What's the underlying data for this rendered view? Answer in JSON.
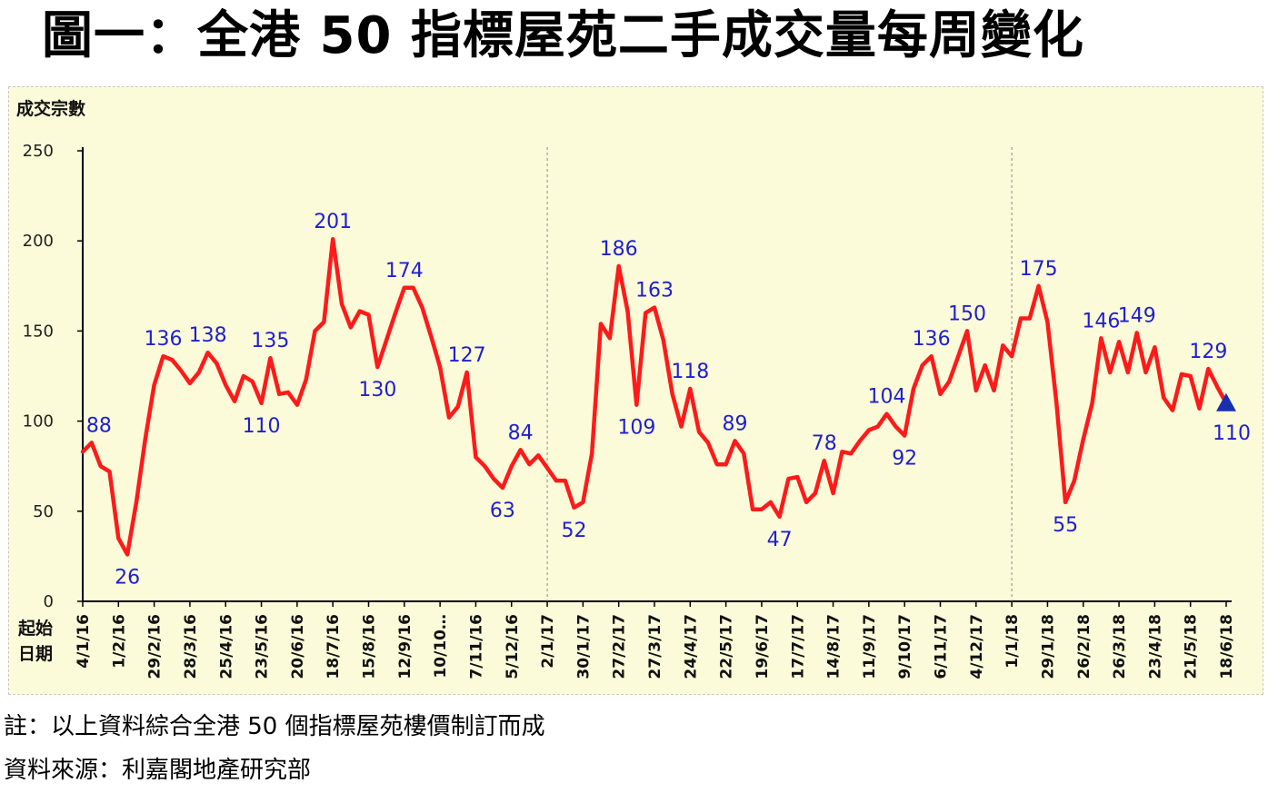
{
  "title": "圖一：全港 50 指標屋苑二手成交量每周變化",
  "note": "註：以上資料綜合全港 50 個指標屋苑樓價制訂而成",
  "source": "資料來源：利嘉閣地產研究部",
  "colors": {
    "line": "#ff1a1a",
    "label": "#1f1fd0",
    "marker": "#1a2fb0",
    "background": "#fbfbd9"
  },
  "chart_data": {
    "type": "line",
    "ylabel": "成交宗數",
    "xlabel": "起始\n日期",
    "xlabel_lines": [
      "起始",
      "日期"
    ],
    "ylim": [
      0,
      250
    ],
    "yticks": [
      0,
      50,
      100,
      150,
      200,
      250
    ],
    "grid": false,
    "year_dividers": [
      "2/1/17",
      "1/1/18"
    ],
    "x_tick_labels": [
      "4/1/16",
      "1/2/16",
      "29/2/16",
      "28/3/16",
      "25/4/16",
      "23/5/16",
      "20/6/16",
      "18/7/16",
      "15/8/16",
      "12/9/16",
      "10/10/16",
      "7/11/16",
      "5/12/16",
      "2/1/17",
      "30/1/17",
      "27/2/17",
      "27/3/17",
      "24/4/17",
      "22/5/17",
      "19/6/17",
      "17/7/17",
      "14/8/17",
      "11/9/17",
      "9/10/17",
      "6/11/17",
      "4/12/17",
      "1/1/18",
      "29/1/18",
      "26/2/18",
      "26/3/18",
      "23/4/18",
      "21/5/18",
      "18/6/18"
    ],
    "x_tick_display": [
      "4/1/16",
      "1/2/16",
      "29/2/16",
      "28/3/16",
      "25/4/16",
      "23/5/16",
      "20/6/16",
      "18/7/16",
      "15/8/16",
      "12/9/16",
      "10/10…",
      "7/11/16",
      "5/12/16",
      "2/1/17",
      "30/1/17",
      "27/2/17",
      "27/3/17",
      "24/4/17",
      "22/5/17",
      "19/6/17",
      "17/7/17",
      "14/8/17",
      "11/9/17",
      "9/10/17",
      "6/11/17",
      "4/12/17",
      "1/1/18",
      "29/1/18",
      "26/2/18",
      "26/3/18",
      "23/4/18",
      "21/5/18",
      "18/6/18"
    ],
    "series": [
      {
        "values": [
          83,
          88,
          75,
          72,
          35,
          26,
          55,
          90,
          120,
          136,
          134,
          128,
          121,
          127,
          138,
          132,
          120,
          111,
          125,
          122,
          110,
          135,
          115,
          116,
          109,
          123,
          150,
          155,
          201,
          165,
          152,
          161,
          159,
          130,
          145,
          160,
          174,
          174,
          163,
          147,
          130,
          102,
          108,
          127,
          80,
          75,
          68,
          63,
          75,
          84,
          76,
          81,
          74,
          67,
          67,
          52,
          55,
          82,
          154,
          146,
          186,
          161,
          109,
          160,
          163,
          145,
          115,
          97,
          118,
          94,
          88,
          76,
          76,
          89,
          82,
          51,
          51,
          55,
          47,
          68,
          69,
          55,
          60,
          78,
          60,
          83,
          82,
          89,
          95,
          97,
          104,
          97,
          92,
          118,
          131,
          136,
          115,
          122,
          136,
          150,
          117,
          131,
          117,
          142,
          136,
          157,
          157,
          175,
          155,
          110,
          55,
          67,
          90,
          110,
          146,
          127,
          144,
          127,
          149,
          127,
          141,
          113,
          106,
          126,
          125,
          107,
          129,
          119,
          110
        ]
      }
    ],
    "data_labels": [
      {
        "index": 1,
        "value": 88
      },
      {
        "index": 5,
        "value": 26
      },
      {
        "index": 9,
        "value": 136
      },
      {
        "index": 14,
        "value": 138
      },
      {
        "index": 20,
        "value": 110
      },
      {
        "index": 21,
        "value": 135
      },
      {
        "index": 28,
        "value": 201
      },
      {
        "index": 33,
        "value": 130
      },
      {
        "index": 36,
        "value": 174
      },
      {
        "index": 43,
        "value": 127
      },
      {
        "index": 47,
        "value": 63
      },
      {
        "index": 49,
        "value": 84
      },
      {
        "index": 55,
        "value": 52
      },
      {
        "index": 60,
        "value": 186
      },
      {
        "index": 62,
        "value": 109
      },
      {
        "index": 64,
        "value": 163
      },
      {
        "index": 68,
        "value": 118
      },
      {
        "index": 73,
        "value": 89
      },
      {
        "index": 78,
        "value": 47
      },
      {
        "index": 83,
        "value": 78
      },
      {
        "index": 90,
        "value": 104
      },
      {
        "index": 92,
        "value": 92
      },
      {
        "index": 95,
        "value": 136
      },
      {
        "index": 99,
        "value": 150
      },
      {
        "index": 107,
        "value": 175
      },
      {
        "index": 110,
        "value": 55
      },
      {
        "index": 114,
        "value": 146
      },
      {
        "index": 118,
        "value": 149
      },
      {
        "index": 126,
        "value": 129
      },
      {
        "index": 128,
        "value": 110
      }
    ],
    "last_point_marker": "blue-triangle"
  }
}
